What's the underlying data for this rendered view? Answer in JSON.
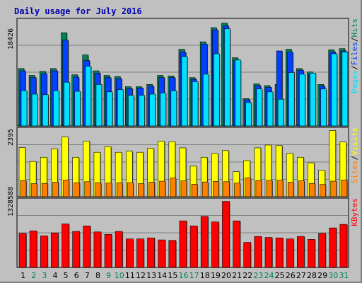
{
  "chart_data": {
    "type": "bar",
    "title": "Daily usage for July 2016",
    "colors": {
      "background": "#c0c0c0",
      "title": "#0000b0",
      "hits": "#00805c",
      "files": "#0040ff",
      "pages": "#00e0ff",
      "visits": "#ffff00",
      "sites": "#ff8000",
      "kbytes": "#ff0000",
      "weekend_label": "#00805c",
      "weekday_label": "#000000"
    },
    "categories": [
      "1",
      "2",
      "3",
      "4",
      "5",
      "6",
      "7",
      "8",
      "9",
      "10",
      "11",
      "12",
      "13",
      "14",
      "15",
      "16",
      "17",
      "18",
      "19",
      "20",
      "21",
      "22",
      "23",
      "24",
      "25",
      "26",
      "27",
      "28",
      "29",
      "30",
      "31"
    ],
    "weekend_days": [
      "2",
      "3",
      "9",
      "10",
      "16",
      "17",
      "23",
      "24",
      "30",
      "31"
    ],
    "panels": [
      {
        "id": "top",
        "max_label": "18426",
        "ymax": 18426,
        "legend": [
          {
            "text": "Pages",
            "color": "#00e0ff"
          },
          {
            "text": "/",
            "color": "#000000"
          },
          {
            "text": "Files",
            "color": "#0040ff"
          },
          {
            "text": "/",
            "color": "#000000"
          },
          {
            "text": "Hits",
            "color": "#00805c"
          }
        ],
        "series": [
          {
            "name": "Hits",
            "color": "#00805c",
            "values": [
              10100,
              8900,
              9600,
              10100,
              16400,
              9000,
              12500,
              9700,
              8900,
              8700,
              6900,
              6900,
              7300,
              8900,
              8800,
              13500,
              8500,
              14800,
              17300,
              18100,
              12000,
              4800,
              7400,
              7100,
              7300,
              13500,
              10100,
              9500,
              7300,
              13400,
              13600
            ]
          },
          {
            "name": "Files",
            "color": "#0040ff",
            "values": [
              9700,
              8500,
              9200,
              9700,
              15100,
              8600,
              11500,
              9300,
              8500,
              8300,
              6600,
              6700,
              7000,
              8500,
              8500,
              13000,
              8200,
              14400,
              16900,
              17600,
              11500,
              4600,
              7100,
              6800,
              13200,
              13000,
              9800,
              9200,
              7000,
              13000,
              13200
            ]
          },
          {
            "name": "Pages",
            "color": "#00e0ff",
            "values": [
              6200,
              5600,
              5500,
              6200,
              7700,
              6100,
              10500,
              7300,
              6000,
              6400,
              5400,
              5400,
              5600,
              5800,
              6200,
              12200,
              7800,
              9100,
              12700,
              17100,
              11600,
              4100,
              6500,
              6000,
              4700,
              9400,
              9100,
              9300,
              6500,
              12700,
              13000
            ]
          }
        ]
      },
      {
        "id": "middle",
        "max_label": "2395",
        "ymax": 2395,
        "legend": [
          {
            "text": "Sites",
            "color": "#ff8000"
          },
          {
            "text": "/",
            "color": "#000000"
          },
          {
            "text": "Visits",
            "color": "#ffff00"
          }
        ],
        "series": [
          {
            "name": "Visits",
            "color": "#ffff00",
            "values": [
              1770,
              1270,
              1420,
              1720,
              2150,
              1420,
              2000,
              1600,
              1800,
              1600,
              1640,
              1600,
              1740,
              2000,
              1980,
              1760,
              1100,
              1420,
              1560,
              1660,
              900,
              1300,
              1760,
              1860,
              1840,
              1560,
              1420,
              1220,
              950,
              2380,
              1970
            ]
          },
          {
            "name": "Sites",
            "color": "#ff8000",
            "values": [
              580,
              470,
              480,
              520,
              600,
              500,
              540,
              500,
              490,
              500,
              500,
              470,
              520,
              560,
              670,
              570,
              450,
              530,
              550,
              540,
              490,
              680,
              580,
              590,
              590,
              520,
              570,
              480,
              440,
              560,
              600
            ]
          }
        ]
      },
      {
        "id": "bottom",
        "max_label": "1328588",
        "ymax": 1328588,
        "legend": [
          {
            "text": "KBytes",
            "color": "#ff0000"
          }
        ],
        "series": [
          {
            "name": "KBytes",
            "color": "#ff0000",
            "values": [
              680000,
              730000,
              630000,
              690000,
              870000,
              720000,
              830000,
              710000,
              660000,
              720000,
              570000,
              570000,
              590000,
              550000,
              540000,
              930000,
              830000,
              1020000,
              910000,
              1320000,
              930000,
              500000,
              620000,
              600000,
              590000,
              570000,
              620000,
              560000,
              680000,
              790000,
              860000
            ]
          }
        ]
      }
    ]
  }
}
